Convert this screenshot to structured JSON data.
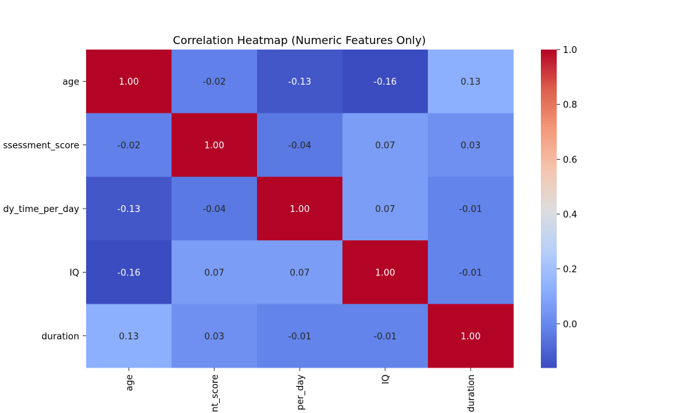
{
  "chart_data": {
    "type": "heatmap",
    "title": "Correlation Heatmap (Numeric Features Only)",
    "row_labels": [
      "age",
      "ssessment_score",
      "dy_time_per_day",
      "IQ",
      "duration"
    ],
    "col_labels": [
      "age",
      "nt_score",
      "per_day",
      "IQ",
      "duration"
    ],
    "values": [
      [
        1.0,
        -0.02,
        -0.13,
        -0.16,
        0.13
      ],
      [
        -0.02,
        1.0,
        -0.04,
        0.07,
        0.03
      ],
      [
        -0.13,
        -0.04,
        1.0,
        0.07,
        -0.01
      ],
      [
        -0.16,
        0.07,
        0.07,
        1.0,
        -0.01
      ],
      [
        0.13,
        0.03,
        -0.01,
        -0.01,
        1.0
      ]
    ],
    "cell_labels": [
      [
        "1.00",
        "-0.02",
        "-0.13",
        "-0.16",
        "0.13"
      ],
      [
        "-0.02",
        "1.00",
        "-0.04",
        "0.07",
        "0.03"
      ],
      [
        "-0.13",
        "-0.04",
        "1.00",
        "0.07",
        "-0.01"
      ],
      [
        "-0.16",
        "0.07",
        "0.07",
        "1.00",
        "-0.01"
      ],
      [
        "0.13",
        "0.03",
        "-0.01",
        "-0.01",
        "1.00"
      ]
    ],
    "colormap": "coolwarm",
    "colorbar": {
      "vmin": -0.16,
      "vmax": 1.0,
      "ticks": [
        0.0,
        0.2,
        0.4,
        0.6,
        0.8,
        1.0
      ],
      "tick_labels": [
        "0.0",
        "0.2",
        "0.4",
        "0.6",
        "0.8",
        "1.0"
      ]
    }
  }
}
